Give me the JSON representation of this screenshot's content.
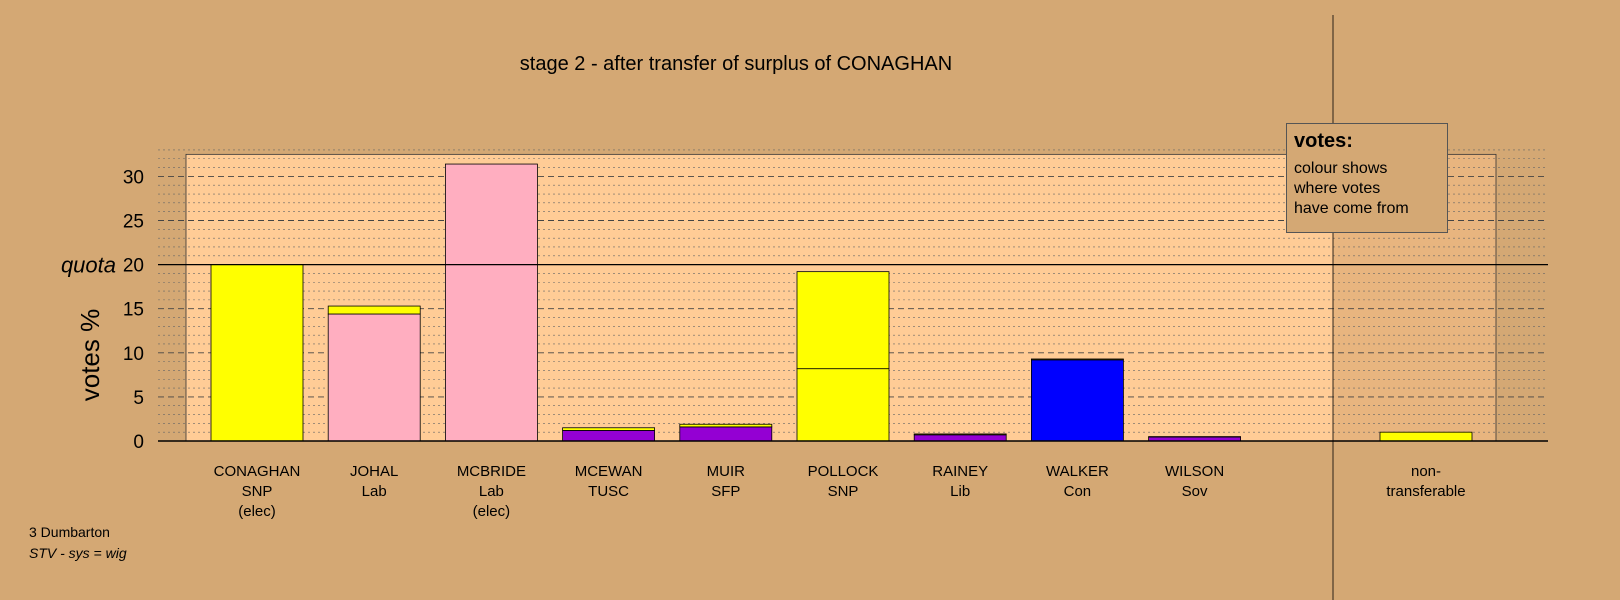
{
  "chart_data": {
    "type": "bar",
    "stacked": true,
    "title": "stage 2 - after transfer of surplus of CONAGHAN",
    "ylabel": "votes %",
    "ylim": [
      0,
      32.5
    ],
    "yticks": [
      0,
      5,
      10,
      15,
      20,
      25,
      30
    ],
    "quota": 20,
    "quota_label": "quota",
    "grid": true,
    "legend_position": "top-right",
    "categories": [
      {
        "name": "CONAGHAN",
        "party": "SNP",
        "note": "(elec)",
        "segments": [
          {
            "value": 20.0,
            "color": "#FFFF00"
          }
        ]
      },
      {
        "name": "JOHAL",
        "party": "Lab",
        "note": "",
        "segments": [
          {
            "value": 14.4,
            "color": "#FFAEC0"
          },
          {
            "value": 0.9,
            "color": "#FFFF00"
          }
        ]
      },
      {
        "name": "MCBRIDE",
        "party": "Lab",
        "note": "(elec)",
        "segments": [
          {
            "value": 31.4,
            "color": "#FFAEC0"
          }
        ]
      },
      {
        "name": "MCEWAN",
        "party": "TUSC",
        "note": "",
        "segments": [
          {
            "value": 1.2,
            "color": "#9400D3"
          },
          {
            "value": 0.3,
            "color": "#FFFF00"
          }
        ]
      },
      {
        "name": "MUIR",
        "party": "SFP",
        "note": "",
        "segments": [
          {
            "value": 1.6,
            "color": "#9400D3"
          },
          {
            "value": 0.3,
            "color": "#FFFF00"
          }
        ]
      },
      {
        "name": "POLLOCK",
        "party": "SNP",
        "note": "",
        "segments": [
          {
            "value": 8.2,
            "color": "#FFFF00"
          },
          {
            "value": 11.0,
            "color": "#FFFF00"
          }
        ]
      },
      {
        "name": "RAINEY",
        "party": "Lib",
        "note": "",
        "segments": [
          {
            "value": 0.7,
            "color": "#9400D3"
          },
          {
            "value": 0.1,
            "color": "#FFFF00"
          }
        ]
      },
      {
        "name": "WALKER",
        "party": "Con",
        "note": "",
        "segments": [
          {
            "value": 9.2,
            "color": "#0000FF"
          },
          {
            "value": 0.1,
            "color": "#FFFF00"
          }
        ]
      },
      {
        "name": "WILSON",
        "party": "Sov",
        "note": "",
        "segments": [
          {
            "value": 0.45,
            "color": "#9400D3"
          },
          {
            "value": 0.05,
            "color": "#FFFF00"
          }
        ]
      }
    ],
    "non_transferable": {
      "name": "non-",
      "party": "transferable",
      "value": 1.0,
      "color": "#FFFF00"
    }
  },
  "legend": {
    "title": "votes:",
    "text": "colour shows\nwhere votes\nhave come from"
  },
  "footer": {
    "constituency": "3 Dumbarton",
    "system": "STV - sys = wig"
  }
}
